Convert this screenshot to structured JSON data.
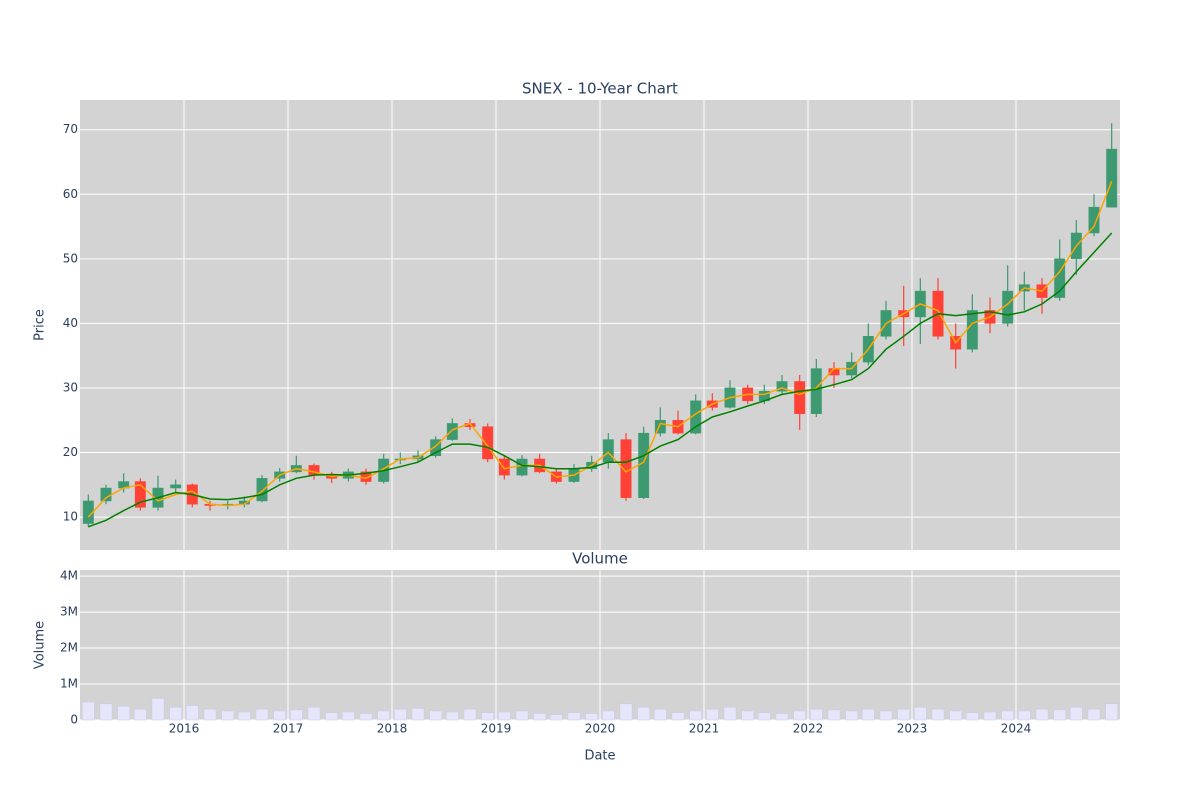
{
  "chart_data": [
    {
      "type": "candlestick",
      "title": "SNEX - 10-Year Chart",
      "y_label": "Price",
      "x": [
        2015.08,
        2015.25,
        2015.42,
        2015.58,
        2015.75,
        2015.92,
        2016.08,
        2016.25,
        2016.42,
        2016.58,
        2016.75,
        2016.92,
        2017.08,
        2017.25,
        2017.42,
        2017.58,
        2017.75,
        2017.92,
        2018.08,
        2018.25,
        2018.42,
        2018.58,
        2018.75,
        2018.92,
        2019.08,
        2019.25,
        2019.42,
        2019.58,
        2019.75,
        2019.92,
        2020.08,
        2020.25,
        2020.42,
        2020.58,
        2020.75,
        2020.92,
        2021.08,
        2021.25,
        2021.42,
        2021.58,
        2021.75,
        2021.92,
        2022.08,
        2022.25,
        2022.42,
        2022.58,
        2022.75,
        2022.92,
        2023.08,
        2023.25,
        2023.42,
        2023.58,
        2023.75,
        2023.92,
        2024.08,
        2024.25,
        2024.42,
        2024.58,
        2024.75,
        2024.92
      ],
      "open": [
        9,
        12.5,
        14.5,
        15.5,
        11.5,
        14.5,
        15,
        12,
        11.8,
        12,
        12.5,
        16,
        17,
        18,
        16.5,
        16,
        17,
        15.5,
        19,
        19,
        19.5,
        22,
        24.5,
        24,
        19,
        16.5,
        19,
        17,
        15.5,
        17.5,
        18.5,
        22,
        13,
        23,
        25,
        23,
        28,
        27,
        30,
        28,
        29.5,
        31,
        26,
        33,
        32,
        34,
        38,
        42,
        41,
        45,
        38,
        36,
        42,
        40,
        45,
        46,
        44,
        50,
        54,
        58
      ],
      "high": [
        13.5,
        15,
        16.8,
        16,
        16.4,
        15.8,
        15.2,
        12.5,
        12.5,
        13.2,
        16.5,
        17.6,
        19.5,
        18.3,
        17,
        17.5,
        17.5,
        19.8,
        20,
        20.3,
        22.5,
        25.3,
        25.2,
        24.5,
        19.5,
        19.6,
        19.8,
        17.5,
        18.2,
        19.5,
        23,
        23,
        24,
        27,
        26.5,
        29,
        29.2,
        31.2,
        30.5,
        30.5,
        32,
        32,
        34.5,
        34,
        35.5,
        40,
        43.5,
        45.8,
        47,
        47,
        40,
        44.5,
        44,
        49,
        48,
        47,
        53,
        56,
        60,
        71
      ],
      "low": [
        8.5,
        12,
        13.8,
        11,
        11,
        13.8,
        11.5,
        11,
        11.2,
        11.5,
        12.3,
        15.5,
        16.8,
        15.8,
        15.3,
        15.5,
        15,
        15.2,
        18.2,
        18.5,
        19.2,
        21.8,
        23.5,
        18.5,
        15.8,
        16.3,
        16.8,
        15.2,
        15.3,
        17,
        17.5,
        12.5,
        12.8,
        22.5,
        22.8,
        22.8,
        26.5,
        26.8,
        27.5,
        27.5,
        29,
        23.5,
        25.5,
        30,
        31.5,
        33.5,
        37.5,
        36.5,
        36.8,
        37.5,
        33,
        35.5,
        38.5,
        39.5,
        42,
        41.5,
        43.5,
        47.5,
        53.5,
        58
      ],
      "close": [
        12.5,
        14.5,
        15.5,
        11.5,
        14.5,
        15,
        12,
        11.8,
        12,
        12.5,
        16,
        17,
        18,
        16.5,
        16,
        17,
        15.5,
        19,
        19,
        19.5,
        22,
        24.5,
        24,
        19,
        16.5,
        19,
        17,
        15.5,
        17.5,
        18.5,
        22,
        13,
        23,
        25,
        23,
        28,
        27,
        30,
        28,
        29.5,
        31,
        26,
        33,
        32,
        34,
        38,
        42,
        41,
        45,
        38,
        36,
        42,
        40,
        45,
        46,
        44,
        50,
        54,
        58,
        67
      ],
      "increasing_color": "#3d9970",
      "decreasing_color": "#ff4136",
      "series": [
        {
          "color": "orange",
          "values": [
            10,
            13,
            14.5,
            15,
            12.5,
            13.5,
            14,
            12,
            11.8,
            12,
            14,
            16.5,
            17.5,
            17,
            16.3,
            16.5,
            16,
            17.5,
            19,
            19.2,
            21,
            23.5,
            24.5,
            21,
            17.5,
            18,
            18,
            16.2,
            16.5,
            18,
            20,
            17,
            18.5,
            24.5,
            24,
            26,
            27.5,
            28.5,
            29,
            29,
            30,
            29,
            30,
            33,
            33,
            36,
            40,
            41.5,
            43,
            42,
            37,
            40,
            41,
            43,
            45.5,
            45,
            48,
            52,
            55,
            62
          ]
        },
        {
          "color": "green",
          "values": [
            8.5,
            9.5,
            11,
            12.3,
            13,
            13.8,
            13.5,
            12.8,
            12.7,
            13,
            13.5,
            15,
            16,
            16.5,
            16.6,
            16.5,
            16.8,
            17.2,
            17.8,
            18.5,
            20,
            21.3,
            21.3,
            20.8,
            19.5,
            18,
            17.8,
            17.5,
            17.5,
            17.7,
            18.5,
            18.5,
            19.5,
            21,
            22,
            24,
            25.5,
            26.3,
            27.2,
            28,
            29,
            29.5,
            29.8,
            30.5,
            31.3,
            33,
            36,
            38,
            40,
            41.5,
            41.2,
            41.5,
            41.8,
            41.3,
            41.8,
            43,
            45,
            48,
            51,
            54
          ]
        }
      ],
      "xlim": [
        2015.0,
        2025.0
      ],
      "xticks": [
        2016,
        2017,
        2018,
        2019,
        2020,
        2021,
        2022,
        2023,
        2024
      ],
      "ylim": [
        4.9,
        74.6
      ],
      "yticks": [
        10,
        20,
        30,
        40,
        50,
        60,
        70
      ],
      "grid": true
    },
    {
      "type": "bar",
      "title": "Volume",
      "x_label": "Date",
      "y_label": "Volume",
      "color": "#e6e6fa",
      "x": [
        2015.08,
        2015.25,
        2015.42,
        2015.58,
        2015.75,
        2015.92,
        2016.08,
        2016.25,
        2016.42,
        2016.58,
        2016.75,
        2016.92,
        2017.08,
        2017.25,
        2017.42,
        2017.58,
        2017.75,
        2017.92,
        2018.08,
        2018.25,
        2018.42,
        2018.58,
        2018.75,
        2018.92,
        2019.08,
        2019.25,
        2019.42,
        2019.58,
        2019.75,
        2019.92,
        2020.08,
        2020.25,
        2020.42,
        2020.58,
        2020.75,
        2020.92,
        2021.08,
        2021.25,
        2021.42,
        2021.58,
        2021.75,
        2021.92,
        2022.08,
        2022.25,
        2022.42,
        2022.58,
        2022.75,
        2022.92,
        2023.08,
        2023.25,
        2023.42,
        2023.58,
        2023.75,
        2023.92,
        2024.08,
        2024.25,
        2024.42,
        2024.58,
        2024.75,
        2024.92
      ],
      "values": [
        500000,
        450000,
        380000,
        300000,
        600000,
        350000,
        400000,
        300000,
        250000,
        220000,
        300000,
        250000,
        280000,
        350000,
        200000,
        220000,
        180000,
        250000,
        300000,
        320000,
        250000,
        220000,
        300000,
        200000,
        220000,
        250000,
        180000,
        150000,
        200000,
        180000,
        250000,
        450000,
        350000,
        300000,
        200000,
        250000,
        300000,
        350000,
        250000,
        200000,
        180000,
        250000,
        300000,
        280000,
        250000,
        300000,
        250000,
        300000,
        350000,
        300000,
        250000,
        200000,
        220000,
        250000,
        250000,
        300000,
        280000,
        350000,
        300000,
        450000
      ],
      "xlim": [
        2015.0,
        2025.0
      ],
      "xticks": [
        2016,
        2017,
        2018,
        2019,
        2020,
        2021,
        2022,
        2023,
        2024
      ],
      "ylim": [
        0,
        4170000
      ],
      "yticks": [
        0,
        {
          "value": 1000000,
          "label": "1M"
        },
        {
          "value": 2000000,
          "label": "2M"
        },
        {
          "value": 3000000,
          "label": "3M"
        },
        {
          "value": 4000000,
          "label": "4M"
        }
      ],
      "grid": true
    }
  ]
}
